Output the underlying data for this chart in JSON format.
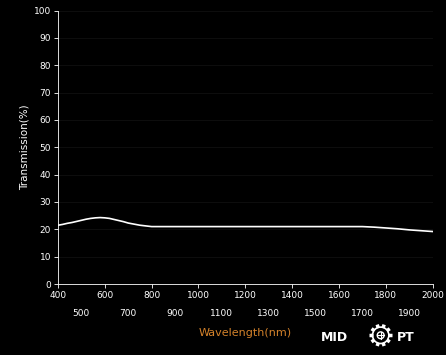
{
  "background_color": "#000000",
  "plot_bg_color": "#000000",
  "line_color": "#ffffff",
  "line_width": 1.2,
  "xlabel": "Wavelength(nm)",
  "ylabel": "Transmission(%)",
  "xlabel_color": "#d4822a",
  "ylabel_color": "#ffffff",
  "tick_label_color": "#ffffff",
  "axis_color": "#ffffff",
  "xlim": [
    400,
    2000
  ],
  "ylim": [
    0,
    100
  ],
  "xticks_major": [
    400,
    600,
    800,
    1000,
    1200,
    1400,
    1600,
    1800,
    2000
  ],
  "xticks_minor": [
    500,
    700,
    900,
    1100,
    1300,
    1500,
    1700,
    1900
  ],
  "yticks_major": [
    0,
    10,
    20,
    30,
    40,
    50,
    60,
    70,
    80,
    90,
    100
  ],
  "grid_color": "#ffffff",
  "grid_alpha": 0.08,
  "wavelengths": [
    400,
    420,
    440,
    460,
    480,
    500,
    520,
    540,
    560,
    580,
    600,
    620,
    640,
    660,
    680,
    700,
    750,
    800,
    850,
    900,
    950,
    1000,
    1050,
    1100,
    1150,
    1200,
    1250,
    1300,
    1350,
    1400,
    1450,
    1500,
    1550,
    1600,
    1650,
    1700,
    1750,
    1800,
    1850,
    1900,
    1950,
    2000
  ],
  "transmission": [
    21.5,
    21.8,
    22.2,
    22.5,
    22.9,
    23.3,
    23.7,
    24.0,
    24.2,
    24.3,
    24.2,
    24.0,
    23.6,
    23.2,
    22.8,
    22.3,
    21.5,
    21.0,
    21.0,
    21.0,
    21.0,
    21.0,
    21.0,
    21.0,
    21.0,
    21.0,
    21.0,
    21.0,
    21.0,
    21.0,
    21.0,
    21.0,
    21.0,
    21.0,
    21.0,
    21.0,
    20.8,
    20.5,
    20.2,
    19.8,
    19.5,
    19.2
  ]
}
